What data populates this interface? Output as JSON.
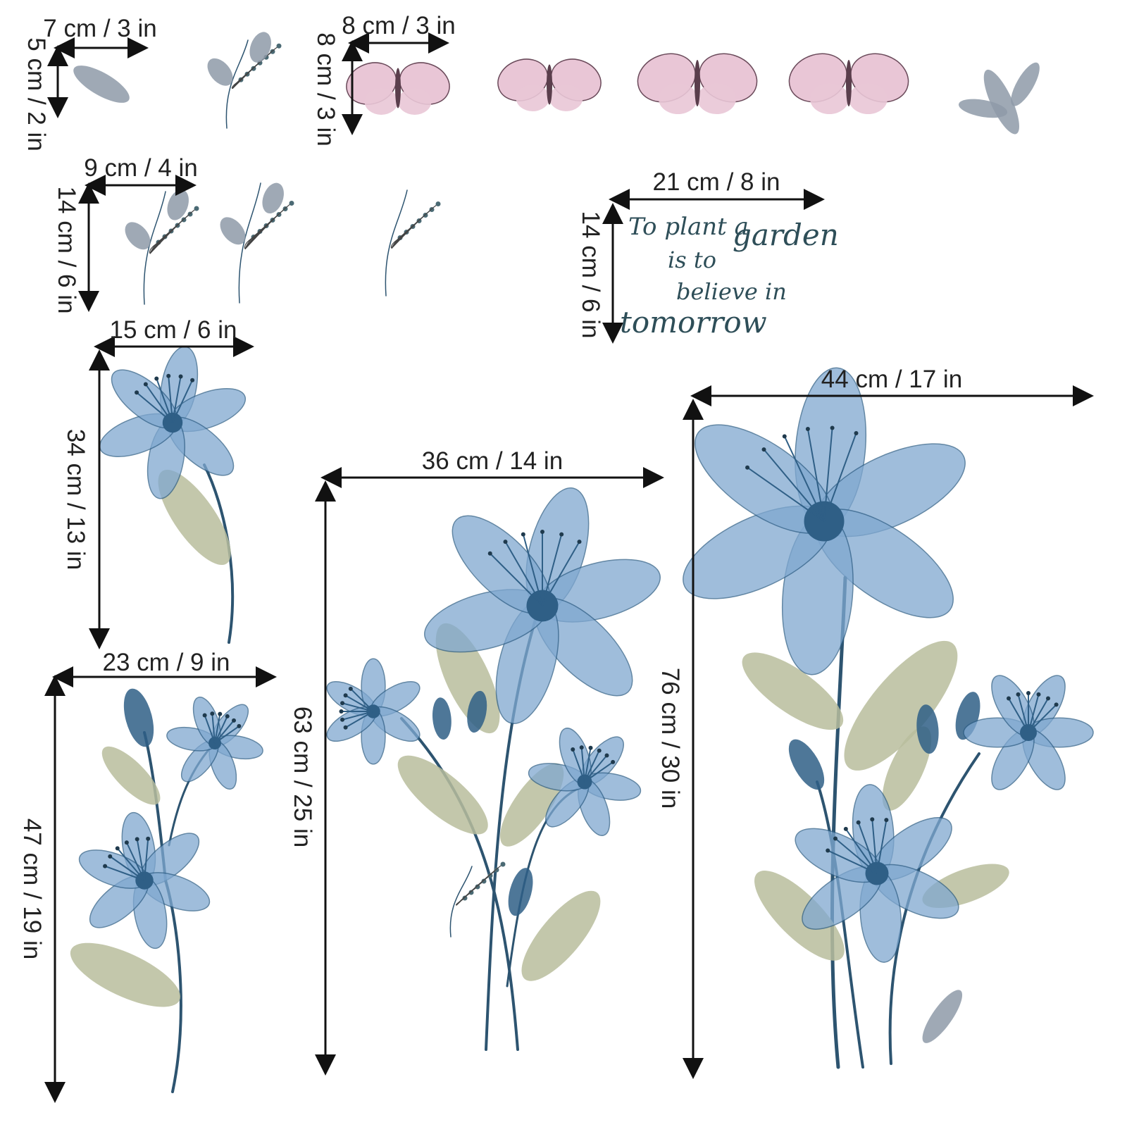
{
  "dimensions": {
    "small_leaf_width": "7 cm / 3 in",
    "small_leaf_height": "5 cm / 2 in",
    "butterfly_width": "8 cm / 3 in",
    "butterfly_height": "8 cm / 3 in",
    "sprig_width": "9 cm / 4 in",
    "sprig_height": "14 cm / 6 in",
    "quote_width": "21 cm / 8 in",
    "quote_height": "14 cm / 6 in",
    "single_lily_width": "15 cm / 6 in",
    "single_lily_height": "34 cm / 13 in",
    "double_lily_width": "23 cm / 9 in",
    "double_lily_height": "47 cm / 19 in",
    "medium_lily_width": "36 cm / 14 in",
    "medium_lily_height": "63 cm / 25 in",
    "large_lily_width": "44 cm / 17 in",
    "large_lily_height": "76 cm / 30 in"
  },
  "quote": {
    "line1": "To plant a",
    "line2": "garden",
    "line3": "is to",
    "line4": "believe in",
    "line5": "tomorrow"
  },
  "colors": {
    "lily_blue": "#7fa8d0",
    "lily_dark": "#2f5f86",
    "stem": "#2d5470",
    "leaf": "#b9bd9c",
    "grey_leaf": "#8e9aa8",
    "butterfly_pink": "#e9c6d6",
    "quote_text": "#2e4e58"
  }
}
